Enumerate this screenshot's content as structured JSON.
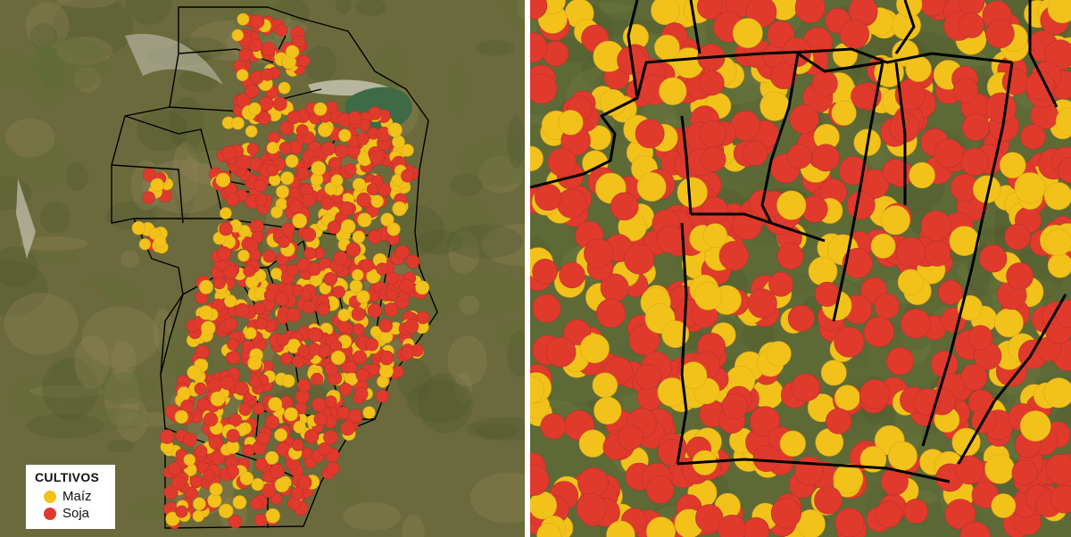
{
  "legend": {
    "title": "CULTIVOS",
    "items": [
      {
        "label": "Maíz",
        "color": "#f2c21b"
      },
      {
        "label": "Soja",
        "color": "#e03a2c"
      }
    ]
  },
  "colors": {
    "terrain": "#6b6a3c",
    "terrain_dark": "#4f5a2e",
    "terrain_light": "#8e8456",
    "lake": "#3e6a45",
    "salt_flat": "#d8d4c8",
    "boundary": "#000000"
  },
  "map": {
    "left_view": "overview",
    "right_view": "zoom-detail"
  }
}
